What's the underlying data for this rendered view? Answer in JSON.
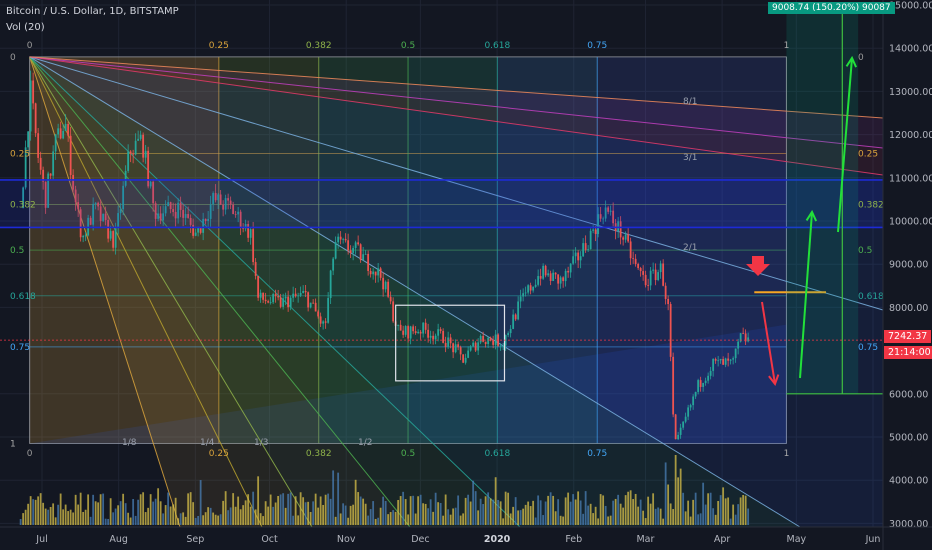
{
  "header": {
    "symbol": "Bitcoin / U.S. Dollar, 1D, BITSTAMP",
    "volume": "Vol (20)"
  },
  "measure_label": "9008.74 (150.20%) 90087",
  "price_tags": {
    "last": "7242.37",
    "countdown": "21:14:00"
  },
  "colors": {
    "background": "#131722",
    "up": "#26a69a",
    "down": "#ef5350",
    "volume": "#d8c04a",
    "measure": "#089981",
    "tag_red": "#f23645",
    "arrow_green": "#22e03a",
    "arrow_red": "#f23645",
    "level_line": "#f5a623",
    "channel_line": "#1e2bd8"
  },
  "chart_data": {
    "type": "candlestick",
    "title": "Bitcoin / U.S. Dollar, 1D, BITSTAMP",
    "x_ticks": [
      "Jul",
      "Aug",
      "Sep",
      "Oct",
      "Nov",
      "Dec",
      "2020",
      "Feb",
      "Mar",
      "Apr",
      "May",
      "Jun"
    ],
    "y_ticks": [
      "15000.00",
      "14000.00",
      "13000.00",
      "12000.00",
      "11000.00",
      "10000.00",
      "9000.00",
      "8000.00",
      "6000.00",
      "5000.00",
      "4000.00",
      "3000.00"
    ],
    "ylim": [
      2800,
      15000
    ],
    "fib_top_labels": [
      "0",
      "0.25",
      "0.382",
      "0.5",
      "0.618",
      "0.75",
      "1"
    ],
    "fib_bottom_labels": [
      "0",
      "0.25",
      "0.382",
      "0.5",
      "0.618",
      "0.75",
      "1"
    ],
    "fib_left_labels": [
      "0",
      "0.25",
      "0.382",
      "0.5",
      "0.618",
      "0.75",
      "1"
    ],
    "fib_right_labels": [
      "0",
      "0.25",
      "0.382",
      "0.5",
      "0.618",
      "0.75"
    ],
    "fan_labels": [
      "1/8",
      "1/4",
      "1/3",
      "1/2",
      "2/1",
      "3/1",
      "8/1"
    ],
    "fib_ratios": [
      0,
      0.25,
      0.382,
      0.5,
      0.618,
      0.75,
      1
    ],
    "fib_range": {
      "start": "2019-06-26",
      "end": "2020-04-27",
      "high": 13800,
      "low": 4850
    },
    "anchor": {
      "date": "2019-06-26",
      "price": 13800
    },
    "blue_channel": [
      10950,
      9850
    ],
    "consolidation_box": {
      "start": "2019-11-21",
      "end": "2020-01-04",
      "high": 8050,
      "low": 6300
    },
    "level_line": {
      "start": "2020-04-14",
      "end": "2020-05-13",
      "price": 8350
    },
    "measure": {
      "start": "2020-04-27",
      "end": "2020-05-26",
      "from": 6000,
      "to": 15000
    },
    "price_series": [
      [
        "2019-06-22",
        10300
      ],
      [
        "2019-06-26",
        13000
      ],
      [
        "2019-06-29",
        11500
      ],
      [
        "2019-07-02",
        10500
      ],
      [
        "2019-07-06",
        11800
      ],
      [
        "2019-07-10",
        12300
      ],
      [
        "2019-07-14",
        10500
      ],
      [
        "2019-07-17",
        9600
      ],
      [
        "2019-07-22",
        10300
      ],
      [
        "2019-07-30",
        9500
      ],
      [
        "2019-08-05",
        11600
      ],
      [
        "2019-08-10",
        11900
      ],
      [
        "2019-08-15",
        10200
      ],
      [
        "2019-08-25",
        10300
      ],
      [
        "2019-09-01",
        9700
      ],
      [
        "2019-09-08",
        10500
      ],
      [
        "2019-09-15",
        10300
      ],
      [
        "2019-09-23",
        9700
      ],
      [
        "2019-09-26",
        8200
      ],
      [
        "2019-10-05",
        8100
      ],
      [
        "2019-10-15",
        8300
      ],
      [
        "2019-10-23",
        7500
      ],
      [
        "2019-10-27",
        9500
      ],
      [
        "2019-11-05",
        9300
      ],
      [
        "2019-11-15",
        8700
      ],
      [
        "2019-11-22",
        7400
      ],
      [
        "2019-12-01",
        7500
      ],
      [
        "2019-12-10",
        7300
      ],
      [
        "2019-12-18",
        6800
      ],
      [
        "2019-12-25",
        7300
      ],
      [
        "2020-01-03",
        7200
      ],
      [
        "2020-01-10",
        8100
      ],
      [
        "2020-01-18",
        8800
      ],
      [
        "2020-01-27",
        8600
      ],
      [
        "2020-02-05",
        9400
      ],
      [
        "2020-02-13",
        10300
      ],
      [
        "2020-02-20",
        9700
      ],
      [
        "2020-02-26",
        8900
      ],
      [
        "2020-03-01",
        8600
      ],
      [
        "2020-03-07",
        8900
      ],
      [
        "2020-03-10",
        7900
      ],
      [
        "2020-03-12",
        5200
      ],
      [
        "2020-03-13",
        4800
      ],
      [
        "2020-03-16",
        5300
      ],
      [
        "2020-03-22",
        6200
      ],
      [
        "2020-03-28",
        6700
      ],
      [
        "2020-04-05",
        6700
      ],
      [
        "2020-04-08",
        7300
      ],
      [
        "2020-04-12",
        7242
      ]
    ]
  }
}
